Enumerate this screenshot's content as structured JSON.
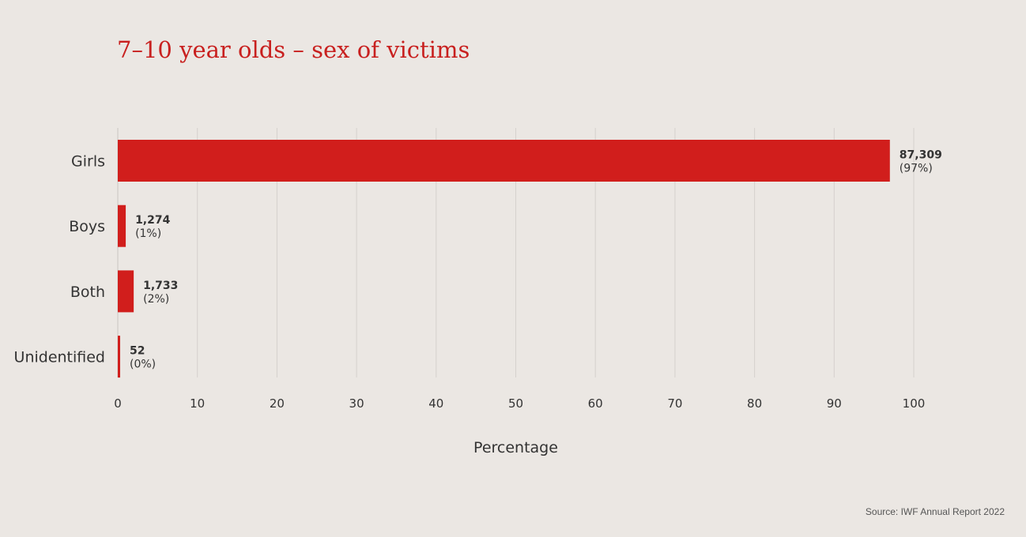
{
  "chart_data": {
    "type": "bar",
    "orientation": "horizontal",
    "title": "7–10 year olds – sex of victims",
    "xlabel": "Percentage",
    "ylabel": "",
    "xlim": [
      0,
      100
    ],
    "xticks": [
      0,
      10,
      20,
      30,
      40,
      50,
      60,
      70,
      80,
      90,
      100
    ],
    "grid": true,
    "categories": [
      "Girls",
      "Boys",
      "Both",
      "Unidentified"
    ],
    "values": [
      97,
      1,
      2,
      0
    ],
    "data_labels": [
      {
        "count": "87,309",
        "percent": "(97%)"
      },
      {
        "count": "1,274",
        "percent": "(1%)"
      },
      {
        "count": "1,733",
        "percent": "(2%)"
      },
      {
        "count": "52",
        "percent": "(0%)"
      }
    ],
    "bar_color": "#d11e1c",
    "source": "Source: IWF Annual Report 2022"
  }
}
